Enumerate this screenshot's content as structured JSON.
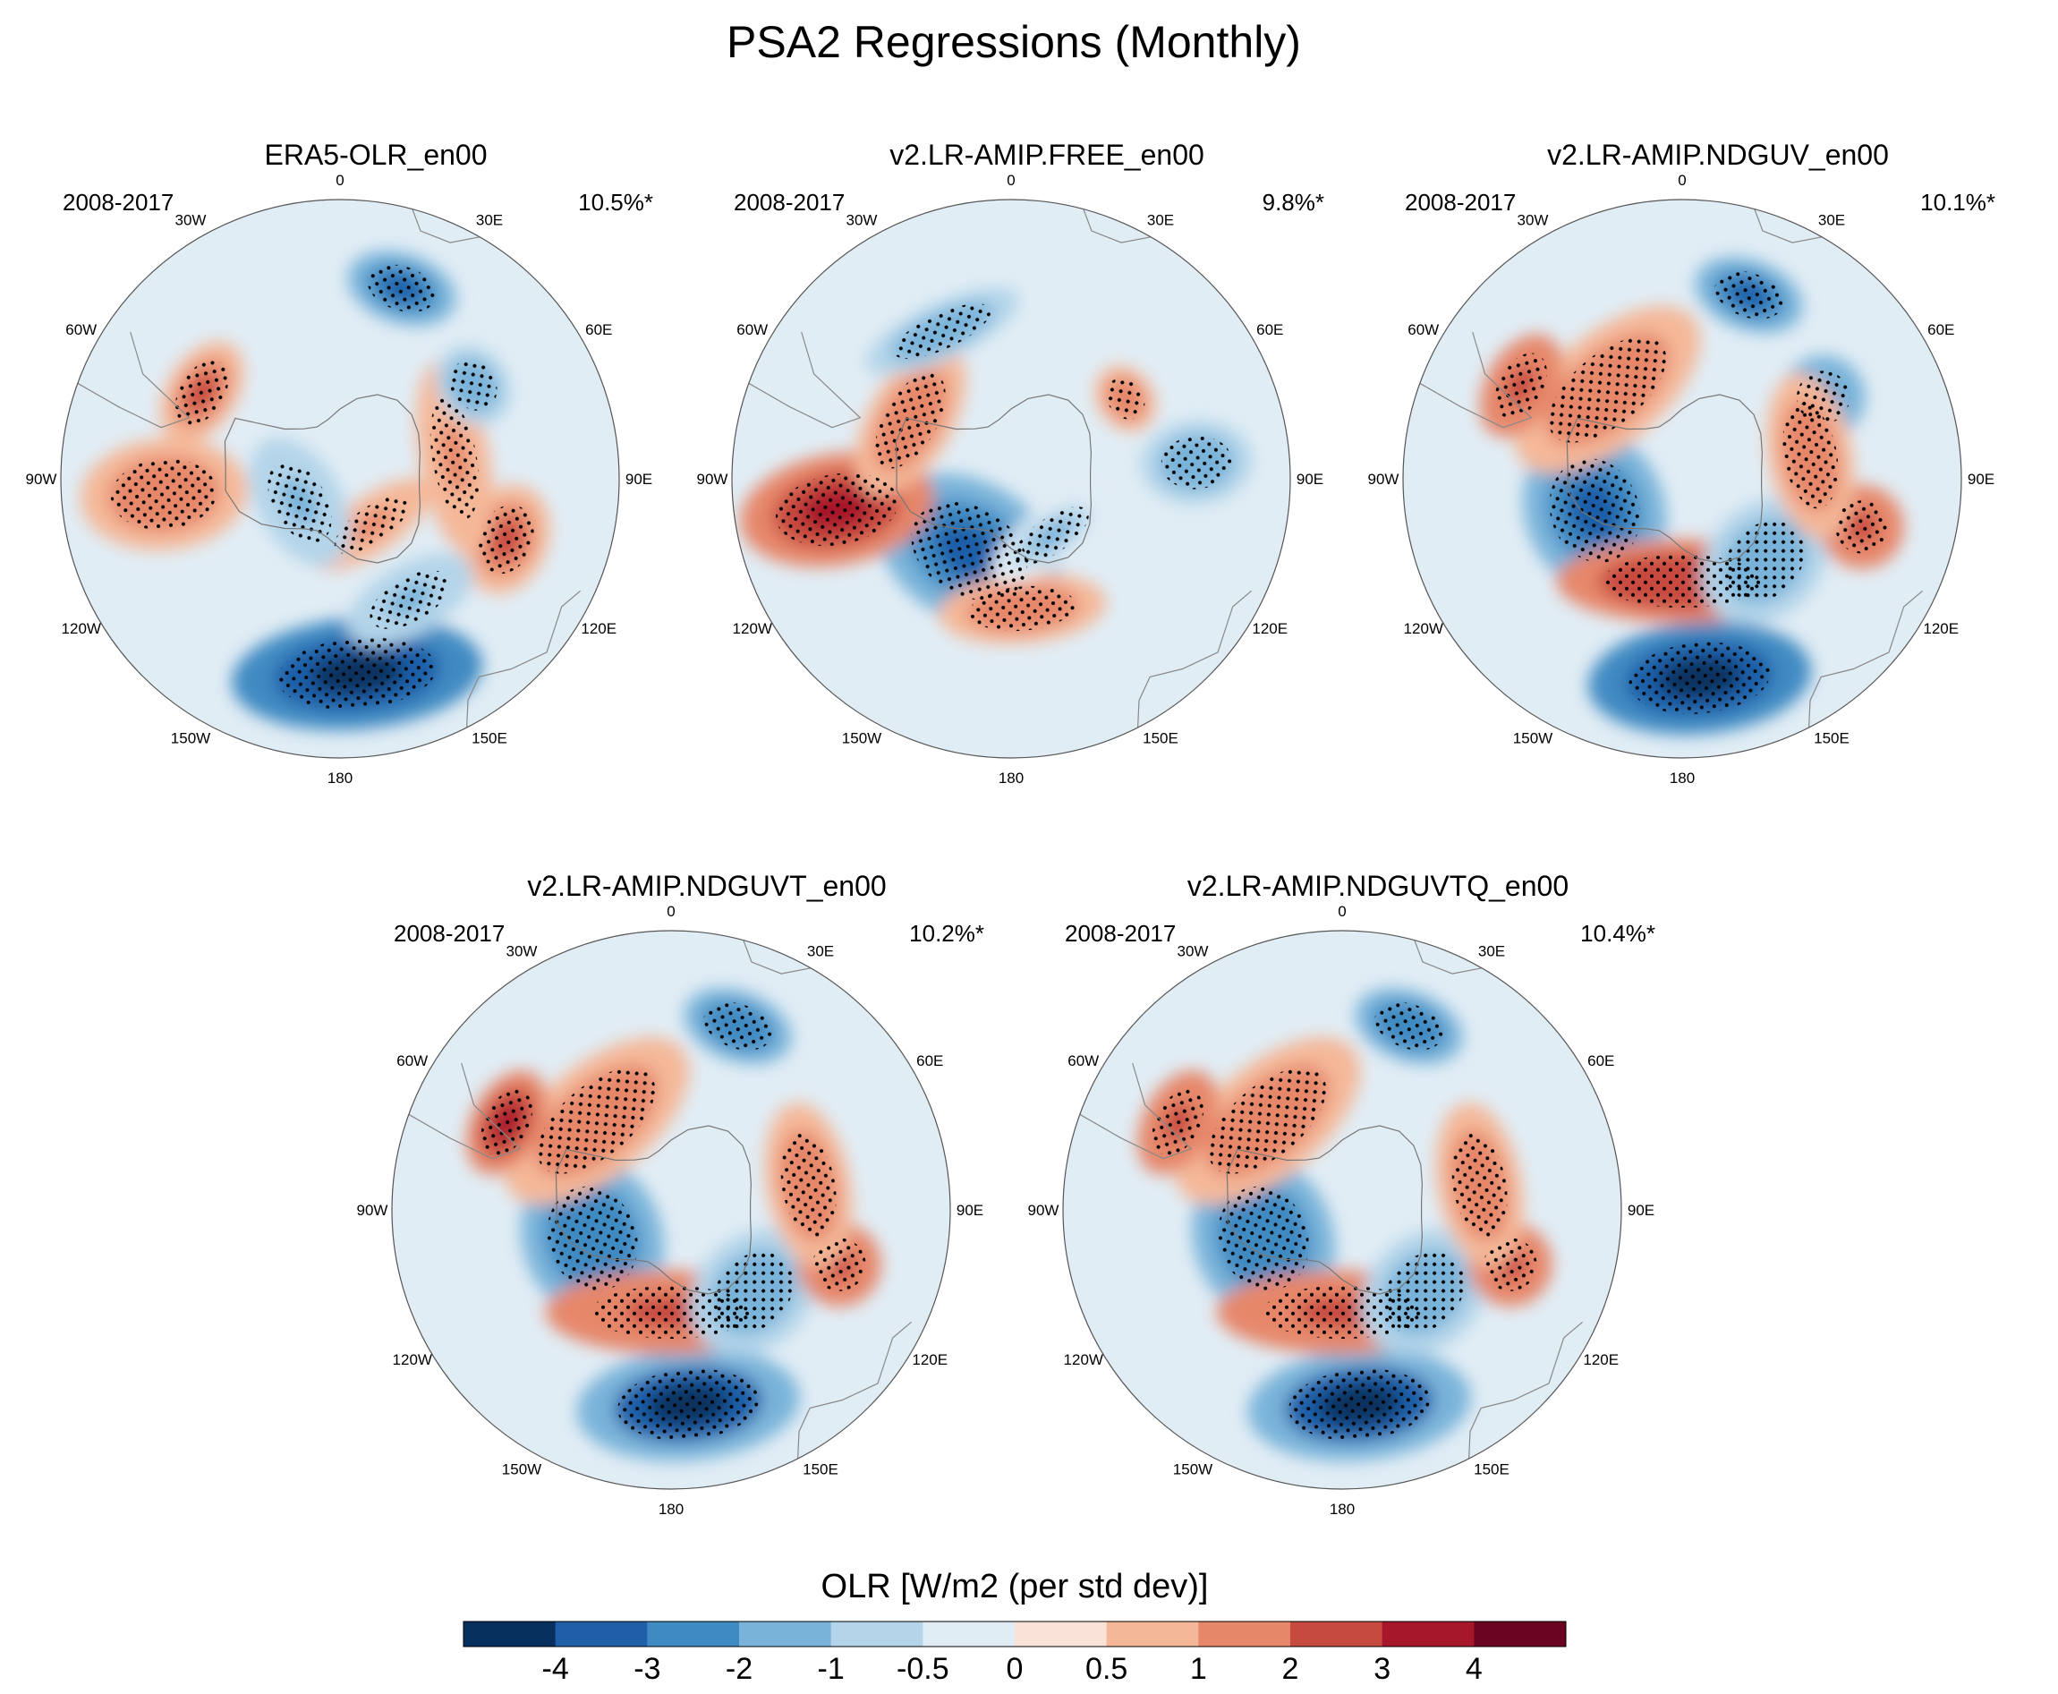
{
  "figure": {
    "title": "PSA2 Regressions (Monthly)"
  },
  "panels": [
    {
      "id": "era5",
      "title": "ERA5-OLR_en00",
      "period": "2008-2017",
      "variance": "10.5%*"
    },
    {
      "id": "free",
      "title": "v2.LR-AMIP.FREE_en00",
      "period": "2008-2017",
      "variance": "9.8%*"
    },
    {
      "id": "nduv",
      "title": "v2.LR-AMIP.NDGUV_en00",
      "period": "2008-2017",
      "variance": "10.1%*"
    },
    {
      "id": "nduvt",
      "title": "v2.LR-AMIP.NDGUVT_en00",
      "period": "2008-2017",
      "variance": "10.2%*"
    },
    {
      "id": "nduvtq",
      "title": "v2.LR-AMIP.NDGUVTQ_en00",
      "period": "2008-2017",
      "variance": "10.4%*"
    }
  ],
  "longitude_labels": [
    "0",
    "30E",
    "60E",
    "90E",
    "120E",
    "150E",
    "180",
    "150W",
    "120W",
    "90W",
    "60W",
    "30W"
  ],
  "colorbar": {
    "title": "OLR [W/m2 (per std dev)]",
    "boundaries": [
      "-4",
      "-3",
      "-2",
      "-1",
      "-0.5",
      "0",
      "0.5",
      "1",
      "2",
      "3",
      "4"
    ],
    "colors": [
      "#08305f",
      "#1f5fa8",
      "#3f8ac2",
      "#79b3d9",
      "#b3d4e9",
      "#e1edf5",
      "#f9e2d8",
      "#f4b899",
      "#e6876a",
      "#c74a41",
      "#a7172c",
      "#6a0420"
    ]
  },
  "chart_data": {
    "type": "heatmap",
    "projection": "south polar stereographic",
    "variable": "OLR regression onto PSA2 index",
    "units": "W/m2 (per std dev)",
    "period": "2008-2017",
    "levels": [
      -4,
      -3,
      -2,
      -1,
      -0.5,
      0,
      0.5,
      1,
      2,
      3,
      4
    ],
    "fields": [
      {
        "panel": "ERA5-OLR_en00",
        "explained_variance_pct": 10.5,
        "anomalies": [
          {
            "lon": 175,
            "lat": -48,
            "value": -4.5,
            "rx": 18,
            "ry": 8
          },
          {
            "lon": 18,
            "lat": -47,
            "value": -3.2,
            "rx": 8,
            "ry": 5
          },
          {
            "lon": -95,
            "lat": -52,
            "value": 1.6,
            "rx": 8,
            "ry": 12
          },
          {
            "lon": -58,
            "lat": -55,
            "value": 2.0,
            "rx": 8,
            "ry": 5
          },
          {
            "lon": 110,
            "lat": -52,
            "value": 2.2,
            "rx": 8,
            "ry": 6
          },
          {
            "lon": 145,
            "lat": -78,
            "value": 1.2,
            "rx": 10,
            "ry": 4
          },
          {
            "lon": -120,
            "lat": -80,
            "value": -1.3,
            "rx": 10,
            "ry": 6
          },
          {
            "lon": 150,
            "lat": -60,
            "value": -1.2,
            "rx": 10,
            "ry": 5
          },
          {
            "lon": 80,
            "lat": -65,
            "value": 1.3,
            "rx": 14,
            "ry": 5
          },
          {
            "lon": 55,
            "lat": -55,
            "value": -1.8,
            "rx": 6,
            "ry": 5
          }
        ]
      },
      {
        "panel": "v2.LR-AMIP.FREE_en00",
        "explained_variance_pct": 9.8,
        "anomalies": [
          {
            "lon": -150,
            "lat": -72,
            "value": -3.5,
            "rx": 14,
            "ry": 10
          },
          {
            "lon": -100,
            "lat": -52,
            "value": 3.2,
            "rx": 8,
            "ry": 14
          },
          {
            "lon": -60,
            "lat": -65,
            "value": 1.5,
            "rx": 12,
            "ry": 6
          },
          {
            "lon": 175,
            "lat": -62,
            "value": 1.4,
            "rx": 12,
            "ry": 5
          },
          {
            "lon": -25,
            "lat": -55,
            "value": -1.8,
            "rx": 12,
            "ry": 4
          },
          {
            "lon": 85,
            "lat": -50,
            "value": -1.5,
            "rx": 6,
            "ry": 8
          },
          {
            "lon": 55,
            "lat": -60,
            "value": 1.5,
            "rx": 5,
            "ry": 4
          },
          {
            "lon": 145,
            "lat": -75,
            "value": -1.1,
            "rx": 10,
            "ry": 4
          }
        ]
      },
      {
        "panel": "v2.LR-AMIP.NDGUV_en00",
        "explained_variance_pct": 10.1,
        "anomalies": [
          {
            "lon": -110,
            "lat": -70,
            "value": -3.2,
            "rx": 12,
            "ry": 10
          },
          {
            "lon": 175,
            "lat": -47,
            "value": -4.5,
            "rx": 16,
            "ry": 8
          },
          {
            "lon": 180,
            "lat": -68,
            "value": 2.8,
            "rx": 18,
            "ry": 6
          },
          {
            "lon": -40,
            "lat": -65,
            "value": 1.8,
            "rx": 16,
            "ry": 8
          },
          {
            "lon": -60,
            "lat": -50,
            "value": 2.4,
            "rx": 8,
            "ry": 5
          },
          {
            "lon": 135,
            "lat": -65,
            "value": -1.9,
            "rx": 10,
            "ry": 8
          },
          {
            "lon": 105,
            "lat": -50,
            "value": 2.6,
            "rx": 6,
            "ry": 6
          },
          {
            "lon": 20,
            "lat": -48,
            "value": -3.4,
            "rx": 8,
            "ry": 5
          },
          {
            "lon": 60,
            "lat": -55,
            "value": -2.4,
            "rx": 6,
            "ry": 6
          },
          {
            "lon": 80,
            "lat": -62,
            "value": 1.6,
            "rx": 12,
            "ry": 6
          }
        ]
      },
      {
        "panel": "v2.LR-AMIP.NDGUVT_en00",
        "explained_variance_pct": 10.2,
        "anomalies": [
          {
            "lon": -110,
            "lat": -72,
            "value": -3.0,
            "rx": 12,
            "ry": 10
          },
          {
            "lon": 175,
            "lat": -48,
            "value": -4.2,
            "rx": 16,
            "ry": 8
          },
          {
            "lon": 180,
            "lat": -68,
            "value": 2.4,
            "rx": 18,
            "ry": 6
          },
          {
            "lon": -40,
            "lat": -65,
            "value": 1.6,
            "rx": 16,
            "ry": 8
          },
          {
            "lon": -62,
            "lat": -50,
            "value": 3.2,
            "rx": 8,
            "ry": 5
          },
          {
            "lon": 135,
            "lat": -65,
            "value": -1.7,
            "rx": 10,
            "ry": 8
          },
          {
            "lon": 108,
            "lat": -52,
            "value": 2.6,
            "rx": 6,
            "ry": 6
          },
          {
            "lon": 20,
            "lat": -48,
            "value": -3.0,
            "rx": 8,
            "ry": 5
          },
          {
            "lon": 80,
            "lat": -60,
            "value": 1.6,
            "rx": 12,
            "ry": 6
          }
        ]
      },
      {
        "panel": "v2.LR-AMIP.NDGUVTQ_en00",
        "explained_variance_pct": 10.4,
        "anomalies": [
          {
            "lon": -110,
            "lat": -72,
            "value": -2.8,
            "rx": 12,
            "ry": 10
          },
          {
            "lon": 175,
            "lat": -48,
            "value": -4.2,
            "rx": 16,
            "ry": 8
          },
          {
            "lon": 180,
            "lat": -68,
            "value": 2.4,
            "rx": 18,
            "ry": 6
          },
          {
            "lon": -40,
            "lat": -65,
            "value": 1.6,
            "rx": 16,
            "ry": 8
          },
          {
            "lon": -62,
            "lat": -50,
            "value": 2.6,
            "rx": 8,
            "ry": 5
          },
          {
            "lon": 135,
            "lat": -65,
            "value": -1.6,
            "rx": 10,
            "ry": 8
          },
          {
            "lon": 108,
            "lat": -52,
            "value": 2.6,
            "rx": 6,
            "ry": 6
          },
          {
            "lon": 20,
            "lat": -48,
            "value": -3.0,
            "rx": 8,
            "ry": 5
          },
          {
            "lon": 80,
            "lat": -60,
            "value": 1.6,
            "rx": 12,
            "ry": 6
          }
        ]
      }
    ]
  }
}
